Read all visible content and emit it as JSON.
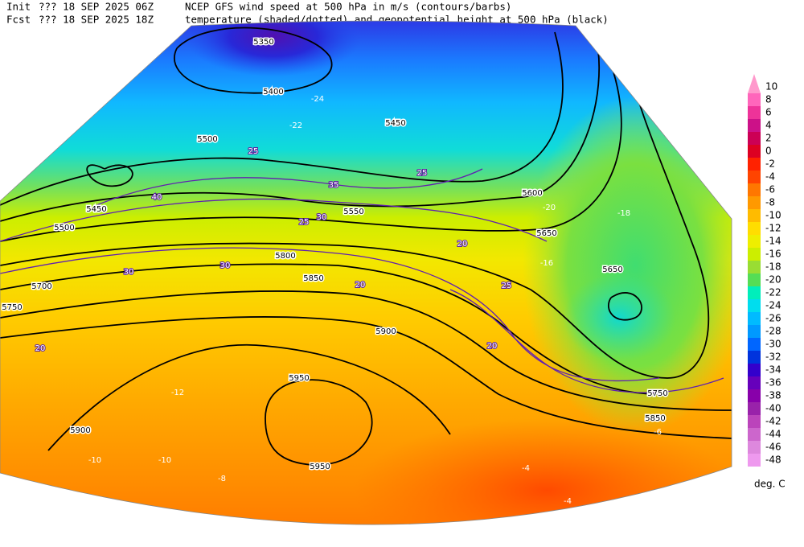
{
  "header": {
    "init_label": "Init",
    "init_run": "??? 18 SEP 2025 06Z",
    "fcst_label": "Fcst",
    "fcst_run": "??? 18 SEP 2025 18Z",
    "title_line1": "NCEP GFS wind speed at 500 hPa in m/s (contours/barbs)",
    "title_line2": "temperature (shaded/dotted) and geopotential height at 500 hPa (black)"
  },
  "colorbar": {
    "unit": "deg. C",
    "levels": [
      {
        "label": "10",
        "color": "#ff99cc"
      },
      {
        "label": "8",
        "color": "#ff66bb"
      },
      {
        "label": "6",
        "color": "#ee3399"
      },
      {
        "label": "4",
        "color": "#cc1188"
      },
      {
        "label": "2",
        "color": "#cc0055"
      },
      {
        "label": "0",
        "color": "#dd0022"
      },
      {
        "label": "-2",
        "color": "#ff2200"
      },
      {
        "label": "-4",
        "color": "#ff4400"
      },
      {
        "label": "-6",
        "color": "#ff7700"
      },
      {
        "label": "-8",
        "color": "#ff9900"
      },
      {
        "label": "-10",
        "color": "#ffbb00"
      },
      {
        "label": "-12",
        "color": "#ffdd00"
      },
      {
        "label": "-14",
        "color": "#eeee00"
      },
      {
        "label": "-16",
        "color": "#ccee00"
      },
      {
        "label": "-18",
        "color": "#99dd33"
      },
      {
        "label": "-20",
        "color": "#55dd55"
      },
      {
        "label": "-22",
        "color": "#00eebb"
      },
      {
        "label": "-24",
        "color": "#00ddee"
      },
      {
        "label": "-26",
        "color": "#00bbff"
      },
      {
        "label": "-28",
        "color": "#0099ff"
      },
      {
        "label": "-30",
        "color": "#0066ff"
      },
      {
        "label": "-32",
        "color": "#0033dd"
      },
      {
        "label": "-34",
        "color": "#3300cc"
      },
      {
        "label": "-36",
        "color": "#6600bb"
      },
      {
        "label": "-38",
        "color": "#8800aa"
      },
      {
        "label": "-40",
        "color": "#9922aa"
      },
      {
        "label": "-42",
        "color": "#bb44bb"
      },
      {
        "label": "-44",
        "color": "#cc66cc"
      },
      {
        "label": "-46",
        "color": "#dd88dd"
      },
      {
        "label": "-48",
        "color": "#ee99ee"
      }
    ]
  },
  "map": {
    "height_labels": [
      "5350",
      "5400",
      "5450",
      "5500",
      "5550",
      "5600",
      "5650",
      "5650",
      "5700",
      "5750",
      "5800",
      "5850",
      "5900",
      "5900",
      "5950",
      "5950",
      "5750",
      "5850",
      "5450",
      "5500"
    ],
    "wind_labels": [
      "25",
      "30",
      "35",
      "40",
      "25",
      "30",
      "20",
      "25",
      "20",
      "20",
      "25",
      "30",
      "20"
    ],
    "temp_labels": [
      "-24",
      "-22",
      "-20",
      "-18",
      "-16",
      "-12",
      "-10",
      "-10",
      "-8",
      "-6",
      "-4",
      "-4"
    ]
  }
}
